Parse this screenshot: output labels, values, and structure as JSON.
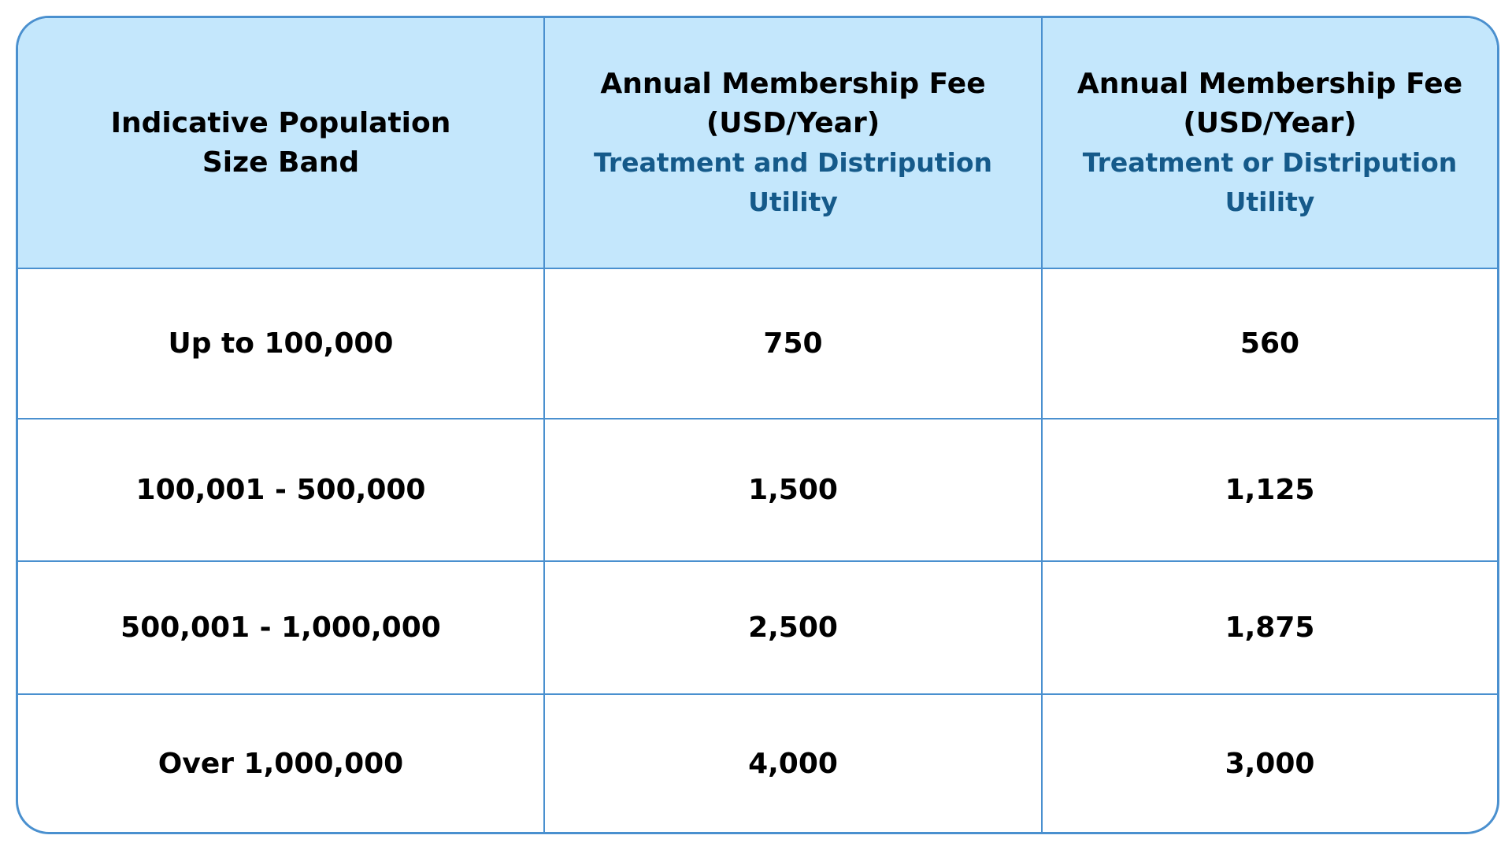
{
  "header": {
    "col1": {
      "line1": "Indicative Population",
      "line2": "Size Band"
    },
    "col2": {
      "title_line1": "Annual Membership Fee",
      "title_line2": "(USD/Year)",
      "sub_line1": "Treatment and Distripution",
      "sub_line2": "Utility"
    },
    "col3": {
      "title_line1": "Annual Membership Fee",
      "title_line2": "(USD/Year)",
      "sub_line1": "Treatment or Distripution",
      "sub_line2": "Utility"
    }
  },
  "rows": [
    {
      "band": "Up to 100,000",
      "fee_and": "750",
      "fee_or": "560"
    },
    {
      "band": "100,001 - 500,000",
      "fee_and": "1,500",
      "fee_or": "1,125"
    },
    {
      "band": "500,001 - 1,000,000",
      "fee_and": "2,500",
      "fee_or": "1,875"
    },
    {
      "band": "Over 1,000,000",
      "fee_and": "4,000",
      "fee_or": "3,000"
    }
  ],
  "colors": {
    "border": "#4a90cf",
    "header_bg": "#c4e7fc",
    "subheader_text": "#155a8a"
  }
}
